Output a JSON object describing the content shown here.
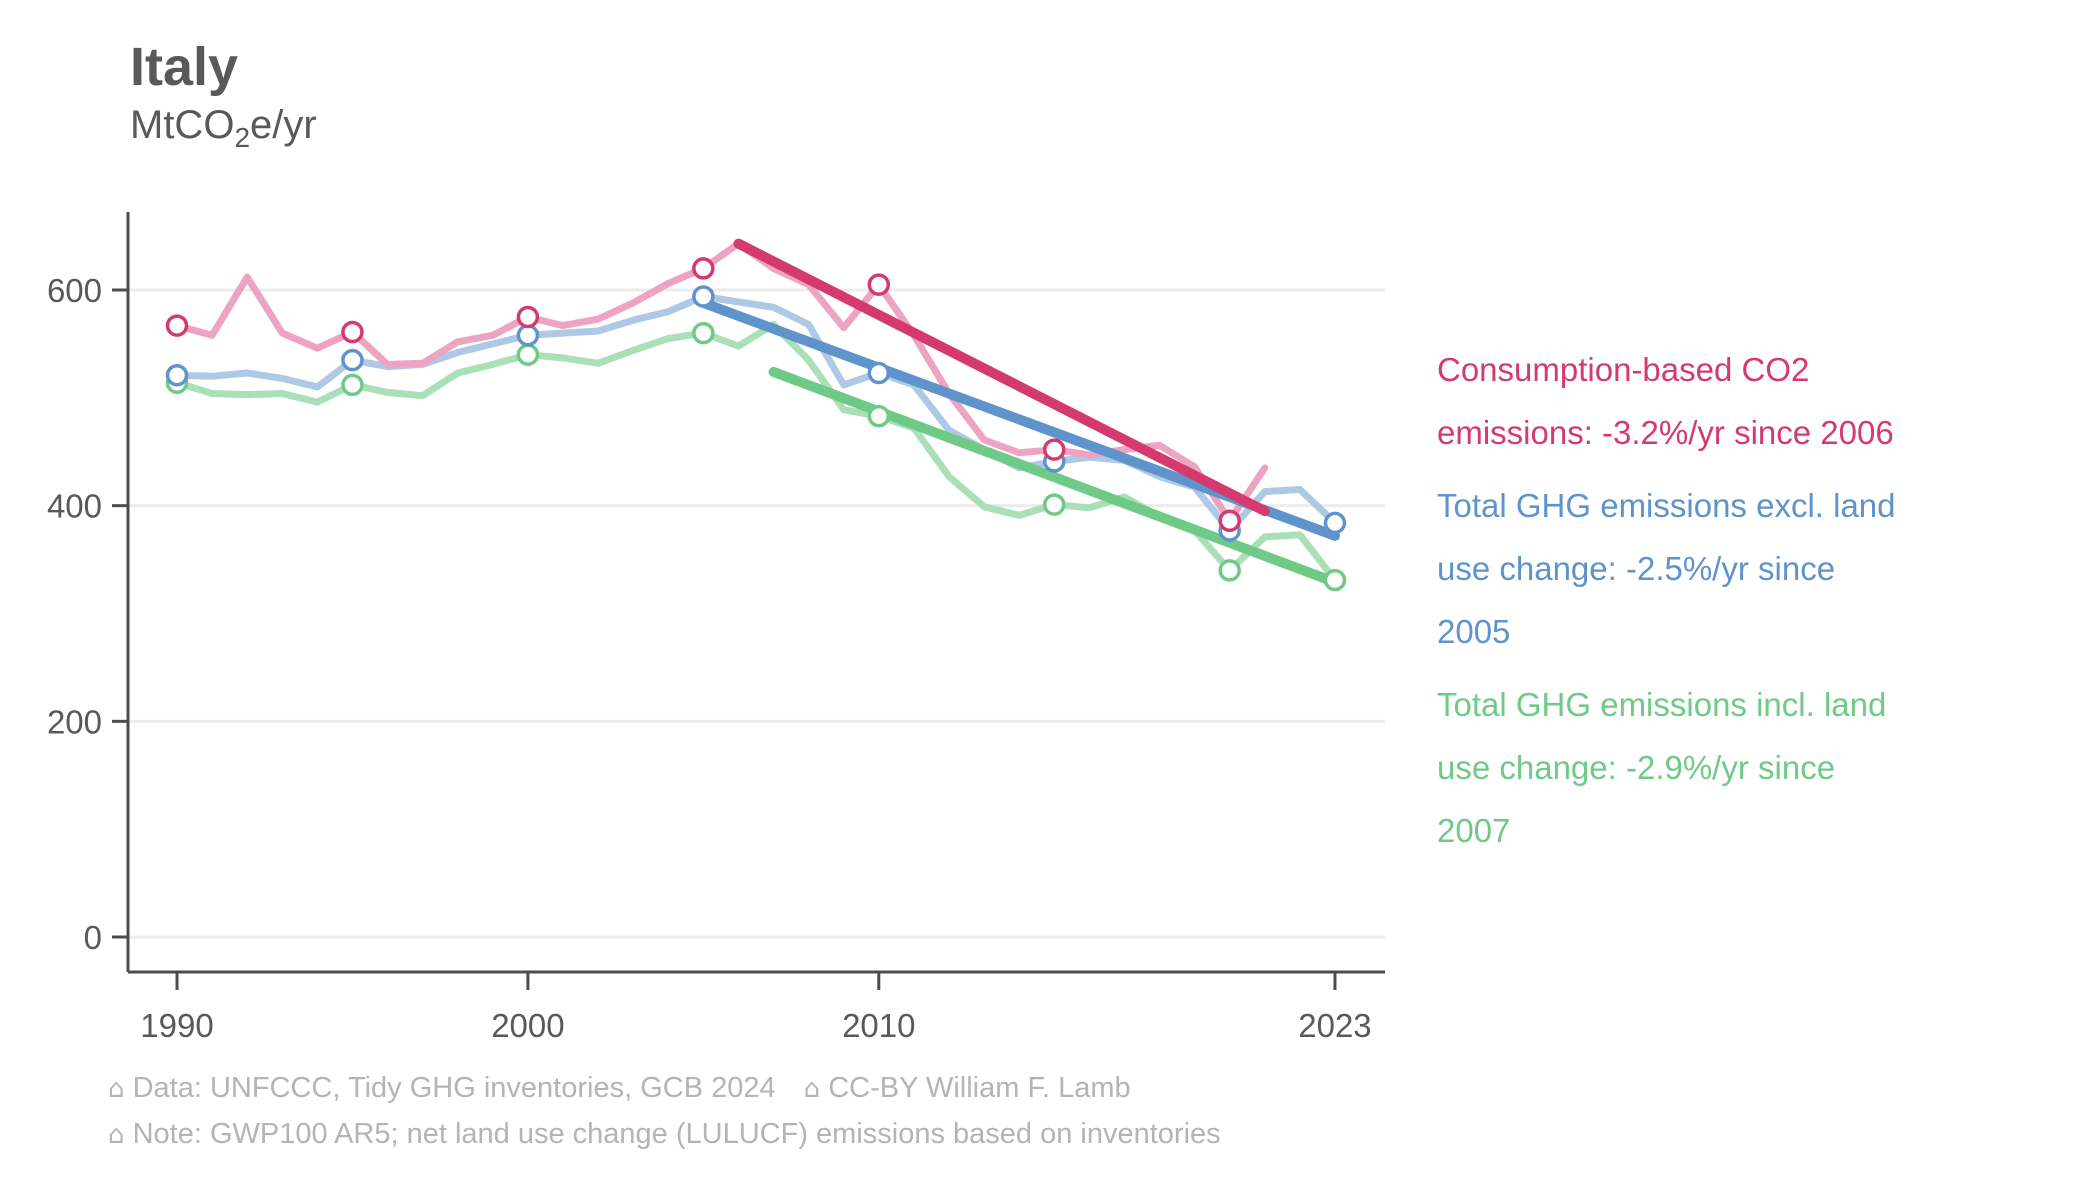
{
  "header": {
    "title": "Italy",
    "unit_prefix": "MtCO",
    "unit_sub": "2",
    "unit_suffix": "e/yr"
  },
  "legend": [
    {
      "series_slug": "consumption-co2",
      "lines": [
        "Consumption-based CO2",
        "emissions: -3.2%/yr since 2006"
      ]
    },
    {
      "series_slug": "ghg-excl-lulucf",
      "lines": [
        "Total GHG emissions excl. land",
        "use change: -2.5%/yr since",
        "2005"
      ]
    },
    {
      "series_slug": "ghg-incl-lulucf",
      "lines": [
        "Total GHG emissions incl. land",
        "use change: -2.9%/yr since",
        "2007"
      ]
    }
  ],
  "footer": {
    "house_glyph": "⌂",
    "data_credit": "Data: UNFCCC, Tidy GHG inventories, GCB 2024",
    "license": "CC-BY William F. Lamb",
    "note": "Note: GWP100 AR5; net land use change (LULUCF) emissions based on inventories"
  },
  "colors": {
    "axis": "#4c4c4c",
    "tick_text": "#595959",
    "gridline": "#ececec",
    "footer_text": "#b4b4b4"
  },
  "chart_data": {
    "type": "line",
    "title": "Italy",
    "ylabel": "MtCO2e/yr",
    "grid": "horizontal",
    "legend_position": "right",
    "x_axis": {
      "ticks": [
        1990,
        2000,
        2010,
        2023
      ]
    },
    "y_axis": {
      "ticks": [
        0,
        200,
        400,
        600
      ],
      "range": [
        0,
        672
      ]
    },
    "series": [
      {
        "name": "Consumption-based CO2 emissions",
        "slug": "consumption-co2",
        "trend_label": "-3.2%/yr since 2006",
        "color": "#d43a6e",
        "light_color": "#eda4c2",
        "start_year": 1990,
        "values": [
          567,
          558,
          612,
          560,
          546,
          561,
          531,
          532,
          552,
          558,
          575,
          567,
          573,
          588,
          606,
          620,
          643,
          620,
          605,
          565,
          605,
          558,
          504,
          461,
          449,
          452,
          447,
          452,
          456,
          436,
          386,
          435
        ],
        "marker_years": [
          1990,
          1995,
          2000,
          2005,
          2010,
          2015,
          2020
        ],
        "trend": {
          "from_year": 2006,
          "from_value": 643,
          "to_year": 2021,
          "to_value": 395
        }
      },
      {
        "name": "Total GHG emissions excl. land use change",
        "slug": "ghg-excl-lulucf",
        "trend_label": "-2.5%/yr since 2005",
        "color": "#5e93cc",
        "light_color": "#aec9e6",
        "start_year": 1990,
        "values": [
          521,
          520,
          523,
          518,
          510,
          535,
          529,
          531,
          542,
          550,
          558,
          560,
          562,
          572,
          580,
          594,
          589,
          584,
          568,
          512,
          523,
          512,
          470,
          452,
          435,
          441,
          445,
          442,
          427,
          417,
          377,
          413,
          415,
          384
        ],
        "marker_years": [
          1990,
          1995,
          2000,
          2005,
          2010,
          2015,
          2020,
          2023
        ],
        "trend": {
          "from_year": 2005,
          "from_value": 588,
          "to_year": 2023,
          "to_value": 372
        }
      },
      {
        "name": "Total GHG emissions incl. land use change",
        "slug": "ghg-incl-lulucf",
        "trend_label": "-2.9%/yr since 2007",
        "color": "#6fc987",
        "light_color": "#abdfb7",
        "start_year": 1990,
        "values": [
          514,
          504,
          503,
          504,
          496,
          512,
          505,
          502,
          523,
          531,
          540,
          537,
          532,
          544,
          555,
          560,
          548,
          568,
          535,
          489,
          483,
          472,
          427,
          399,
          391,
          401,
          398,
          408,
          390,
          377,
          340,
          371,
          373,
          331
        ],
        "marker_years": [
          1990,
          1995,
          2000,
          2005,
          2010,
          2015,
          2020,
          2023
        ],
        "trend": {
          "from_year": 2007,
          "from_value": 524,
          "to_year": 2023,
          "to_value": 329
        }
      }
    ]
  }
}
